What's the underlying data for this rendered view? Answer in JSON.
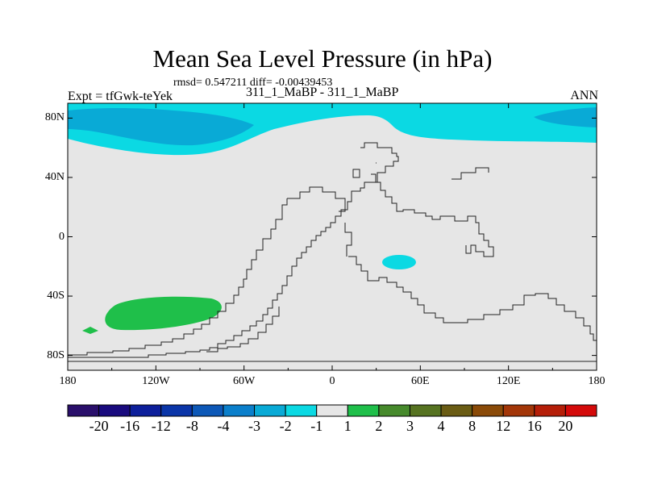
{
  "chart_data": {
    "type": "heatmap",
    "title": "Mean Sea Level Pressure (in hPa)",
    "stats_line": "rmsd= 0.547211 diff= -0.00439453",
    "left_label": "Expt = tfGwk-teYek",
    "center_label": "311_1_MaBP - 311_1_MaBP",
    "right_label": "ANN",
    "x_axis": {
      "range": [
        -180,
        180
      ],
      "ticks": [
        -180,
        -120,
        -60,
        0,
        60,
        120,
        180
      ],
      "tick_labels": [
        "180",
        "120W",
        "60W",
        "0",
        "60E",
        "120E",
        "180"
      ]
    },
    "y_axis": {
      "range": [
        -90,
        90
      ],
      "ticks": [
        80,
        40,
        0,
        -40,
        -80
      ],
      "tick_labels": [
        "80N",
        "40N",
        "0",
        "40S",
        "80S"
      ]
    },
    "colorbar": {
      "colors": [
        "#2a0f6b",
        "#190a7e",
        "#0d1f9b",
        "#0a35a8",
        "#0d58b7",
        "#0a7fcb",
        "#09aad6",
        "#0bd9e3",
        "#e6e6e6",
        "#1fbf4a",
        "#468a2c",
        "#567321",
        "#6a5c14",
        "#8a4a08",
        "#a33608",
        "#b51e08",
        "#d40a0a"
      ],
      "labels": [
        "-20",
        "-16",
        "-12",
        "-8",
        "-4",
        "-3",
        "-2",
        "-1",
        "1",
        "2",
        "3",
        "4",
        "8",
        "12",
        "16",
        "20"
      ]
    },
    "regions": [
      {
        "name": "arctic-band",
        "level": "-2 to -1",
        "lat_range": [
          62,
          90
        ],
        "lon_range": [
          -180,
          180
        ]
      },
      {
        "name": "north-atlantic-low",
        "level": "-3 to -2",
        "lat_center": 78,
        "lon_center": -140
      },
      {
        "name": "north-pacific-low",
        "level": "-3 to -2",
        "lat_center": 80,
        "lon_center": 165
      },
      {
        "name": "equatorial-indian-ocean",
        "level": "-2 to -1",
        "lat_center": -16,
        "lon_center": 47
      },
      {
        "name": "south-pacific-high",
        "level": "1 to 2",
        "lat_center": -50,
        "lon_center": -108
      },
      {
        "name": "south-pacific-high-small",
        "level": "1 to 2",
        "lat_center": -63,
        "lon_center": -163
      }
    ]
  }
}
